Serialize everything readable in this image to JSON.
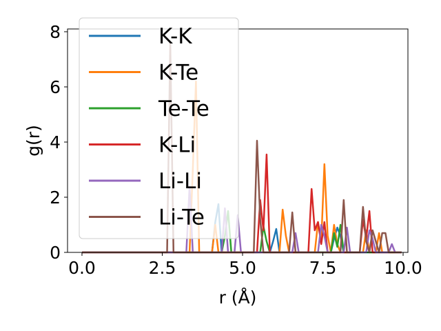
{
  "chart_data": {
    "type": "line",
    "xlabel": "r (Å)",
    "ylabel": "g(r)",
    "xlim": [
      -0.45,
      10.15
    ],
    "ylim": [
      0,
      8.1
    ],
    "xticks": [
      0.0,
      2.5,
      5.0,
      7.5,
      10.0
    ],
    "xtick_labels": [
      "0.0",
      "2.5",
      "5.0",
      "7.5",
      "10.0"
    ],
    "yticks": [
      0,
      2,
      4,
      6,
      8
    ],
    "ytick_labels": [
      "0",
      "2",
      "4",
      "6",
      "8"
    ],
    "grid": false,
    "legend_placement": "upper-left",
    "series": [
      {
        "name": "K-K",
        "color": "#1f77b4",
        "x": [
          0.0,
          4.05,
          4.15,
          4.25,
          4.35,
          5.85,
          5.95,
          6.05,
          6.15,
          7.75,
          7.85,
          7.95,
          8.05,
          8.15,
          9.95
        ],
        "y": [
          0,
          0,
          1.1,
          1.75,
          0,
          0,
          0.4,
          0.85,
          0,
          0,
          0.5,
          0.9,
          0.6,
          0,
          0
        ]
      },
      {
        "name": "K-Te",
        "color": "#ff7f0e",
        "x": [
          0.0,
          3.35,
          3.45,
          3.55,
          3.65,
          4.05,
          4.15,
          4.25,
          6.15,
          6.25,
          6.35,
          6.45,
          7.25,
          7.35,
          7.45,
          7.55,
          7.65,
          7.75,
          7.85,
          7.95,
          8.05,
          8.75,
          8.85,
          8.95,
          9.15,
          9.25,
          9.35,
          9.95
        ],
        "y": [
          0,
          0,
          3.0,
          6.2,
          0,
          0,
          1.0,
          0,
          0,
          1.55,
          0.6,
          0,
          0,
          1.1,
          0.4,
          3.2,
          0.6,
          0,
          1.0,
          0.3,
          0,
          0,
          0.8,
          0,
          0,
          0.7,
          0,
          0
        ]
      },
      {
        "name": "Te-Te",
        "color": "#2ca02c",
        "x": [
          0.0,
          4.35,
          4.45,
          4.55,
          4.65,
          5.55,
          5.65,
          5.75,
          5.85,
          7.75,
          7.85,
          7.95,
          8.05,
          8.15,
          9.95
        ],
        "y": [
          0,
          0,
          0.6,
          1.5,
          0,
          0,
          0.95,
          0.4,
          0,
          0,
          0.7,
          0.2,
          1.0,
          0,
          0
        ]
      },
      {
        "name": "K-Li",
        "color": "#d62728",
        "x": [
          0.0,
          5.45,
          5.55,
          5.65,
          5.75,
          5.85,
          7.05,
          7.15,
          7.25,
          7.35,
          7.45,
          7.55,
          7.65,
          8.65,
          8.75,
          8.85,
          8.95,
          9.05,
          9.95
        ],
        "y": [
          0,
          0,
          1.9,
          0.8,
          3.55,
          0,
          0,
          2.3,
          0.8,
          1.1,
          0.3,
          1.1,
          0,
          0,
          1.2,
          0.5,
          1.5,
          0,
          0
        ]
      },
      {
        "name": "Li-Li",
        "color": "#9467bd",
        "x": [
          0.0,
          3.25,
          3.35,
          3.45,
          4.35,
          4.45,
          4.55,
          4.75,
          4.85,
          4.95,
          6.55,
          6.65,
          6.75,
          7.35,
          7.45,
          7.55,
          7.65,
          8.15,
          8.25,
          8.35,
          8.85,
          8.95,
          9.05,
          9.15,
          9.55,
          9.65,
          9.75,
          9.95
        ],
        "y": [
          0,
          0,
          2.4,
          0,
          0,
          1.6,
          0,
          0,
          1.35,
          0,
          0,
          0.7,
          0,
          0,
          1.0,
          0.6,
          0,
          0,
          0.9,
          0,
          0,
          0.8,
          0.5,
          0,
          0,
          0.3,
          0,
          0
        ]
      },
      {
        "name": "Li-Te",
        "color": "#8c564b",
        "x": [
          0.0,
          2.65,
          2.75,
          2.85,
          5.35,
          5.45,
          5.55,
          5.65,
          6.45,
          6.55,
          6.65,
          8.05,
          8.15,
          8.25,
          8.65,
          8.75,
          8.85,
          8.95,
          9.05,
          9.25,
          9.35,
          9.45,
          9.55,
          9.65,
          9.95
        ],
        "y": [
          0,
          0,
          7.6,
          0,
          0,
          4.05,
          1.2,
          0,
          0,
          1.45,
          0,
          0,
          1.9,
          0,
          0,
          1.65,
          0.4,
          0,
          0.8,
          0,
          0.7,
          0.7,
          0,
          0,
          0
        ]
      }
    ]
  }
}
